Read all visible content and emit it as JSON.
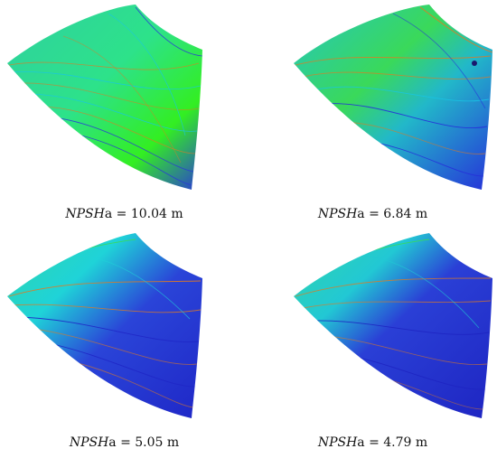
{
  "panels": [
    {
      "label_italic": "NPSH",
      "label_rest": "a = 10.04 m",
      "colors": {
        "surface": "#27c9a8",
        "highlight": "#33ee22",
        "shadow": "#2a3ad6",
        "streak": "#e07a22"
      }
    },
    {
      "label_italic": "NPSH",
      "label_rest": "a = 6.84 m",
      "colors": {
        "surface": "#22b8c9",
        "highlight": "#3ad95a",
        "shadow": "#2630d9",
        "streak": "#e07a22"
      }
    },
    {
      "label_italic": "NPSH",
      "label_rest": "a = 5.05 m",
      "colors": {
        "surface": "#2a44d8",
        "highlight": "#1fd3d8",
        "shadow": "#1f27c7",
        "streak": "#e07a22"
      }
    },
    {
      "label_italic": "NPSH",
      "label_rest": "a = 4.79 m",
      "colors": {
        "surface": "#2a3fd6",
        "highlight": "#22c8d4",
        "shadow": "#1e25c2",
        "streak": "#e07a22"
      }
    }
  ]
}
